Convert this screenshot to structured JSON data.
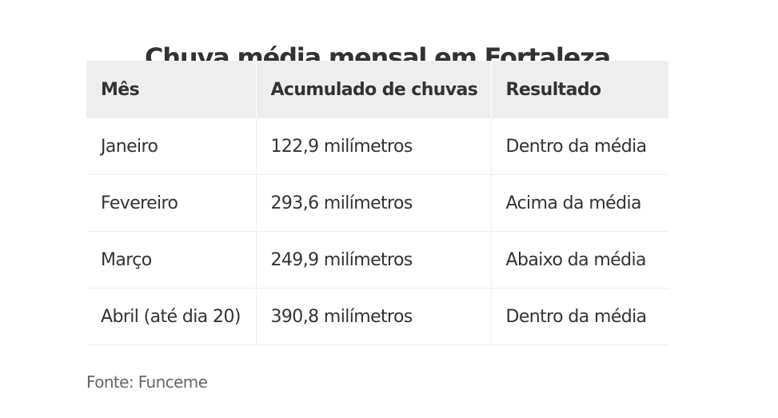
{
  "title": "Chuva média mensal em Fortaleza",
  "table": {
    "headers": [
      "Mês",
      "Acumulado de chuvas",
      "Resultado"
    ],
    "rows": [
      [
        "Janeiro",
        "122,9 milímetros",
        "Dentro da média"
      ],
      [
        "Fevereiro",
        "293,6 milímetros",
        "Acima da média"
      ],
      [
        "Março",
        "249,9 milímetros",
        "Abaixo da média"
      ],
      [
        "Abril (até dia 20)",
        "390,8 milímetros",
        "Dentro da média"
      ]
    ]
  },
  "source": "Fonte: Funceme",
  "colors": {
    "text": "#333333",
    "header_background": "#eeeeee",
    "source_text": "#666666"
  }
}
